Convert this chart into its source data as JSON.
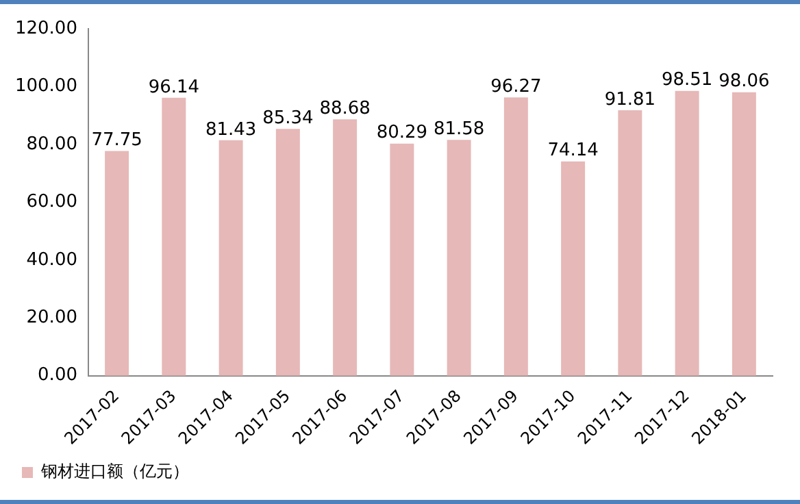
{
  "chart_data": {
    "type": "bar",
    "categories": [
      "2017-02",
      "2017-03",
      "2017-04",
      "2017-05",
      "2017-06",
      "2017-07",
      "2017-08",
      "2017-09",
      "2017-10",
      "2017-11",
      "2017-12",
      "2018-01"
    ],
    "series": [
      {
        "name": "钢材进口额（亿元）",
        "color": "#e6b8b7",
        "values": [
          77.75,
          96.14,
          81.43,
          85.34,
          88.68,
          80.29,
          81.58,
          96.27,
          74.14,
          91.81,
          98.51,
          98.06
        ]
      }
    ],
    "ylim": [
      0,
      120
    ],
    "yticks": [
      {
        "value": 0,
        "label": "0.00"
      },
      {
        "value": 20,
        "label": "20.00"
      },
      {
        "value": 40,
        "label": "40.00"
      },
      {
        "value": 60,
        "label": "60.00"
      },
      {
        "value": 80,
        "label": "80.00"
      },
      {
        "value": 100,
        "label": "100.00"
      },
      {
        "value": 120,
        "label": "120.00"
      }
    ],
    "data_labels": true,
    "grid": false,
    "legend": "bottom left"
  }
}
